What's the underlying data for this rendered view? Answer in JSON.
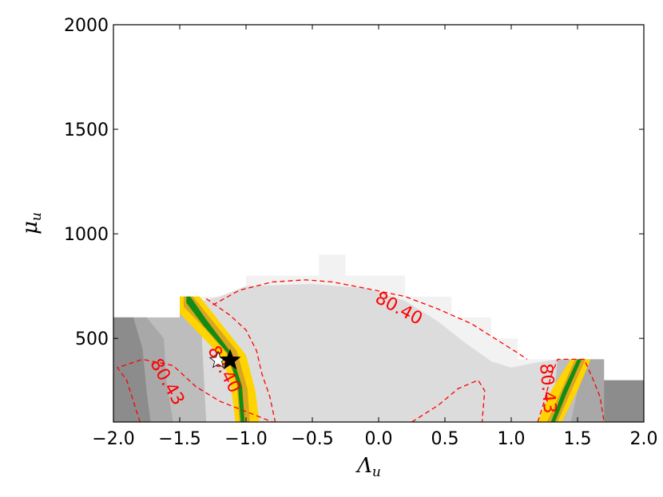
{
  "chart_data": {
    "type": "contour",
    "xlabel": {
      "main": "Λ",
      "sub": "u"
    },
    "ylabel": {
      "main": "μ",
      "sub": "u"
    },
    "xlim": [
      -2.0,
      2.0
    ],
    "ylim": [
      100,
      2000
    ],
    "xticks": [
      {
        "value": -2.0,
        "label": "−2.0"
      },
      {
        "value": -1.5,
        "label": "−1.5"
      },
      {
        "value": -1.0,
        "label": "−1.0"
      },
      {
        "value": -0.5,
        "label": "−0.5"
      },
      {
        "value": 0.0,
        "label": "0.0"
      },
      {
        "value": 0.5,
        "label": "0.5"
      },
      {
        "value": 1.0,
        "label": "1.0"
      },
      {
        "value": 1.5,
        "label": "1.5"
      },
      {
        "value": 2.0,
        "label": "2.0"
      }
    ],
    "yticks": [
      {
        "value": 500,
        "label": "500"
      },
      {
        "value": 1000,
        "label": "1000"
      },
      {
        "value": 1500,
        "label": "1500"
      },
      {
        "value": 2000,
        "label": "2000"
      }
    ],
    "colors": {
      "lightest": "#f2f2f2",
      "light": "#dcdcdc",
      "medium": "#bdbdbd",
      "dark": "#a8a8a8",
      "darkest": "#8c8c8c",
      "yellow": "#ffd400",
      "orange": "#daa520",
      "green": "#138c13",
      "contour": "#ff0000"
    },
    "regions": [
      {
        "name": "lightest",
        "color": "lightest",
        "points": [
          [
            -1.5,
            100
          ],
          [
            -1.5,
            700
          ],
          [
            -1.0,
            700
          ],
          [
            -1.0,
            800
          ],
          [
            -0.45,
            800
          ],
          [
            -0.45,
            900
          ],
          [
            -0.25,
            900
          ],
          [
            -0.25,
            800
          ],
          [
            0.2,
            800
          ],
          [
            0.2,
            700
          ],
          [
            0.55,
            700
          ],
          [
            0.55,
            600
          ],
          [
            0.85,
            600
          ],
          [
            0.85,
            500
          ],
          [
            1.05,
            500
          ],
          [
            1.05,
            400
          ],
          [
            1.3,
            400
          ],
          [
            1.3,
            100
          ]
        ]
      },
      {
        "name": "light",
        "color": "light",
        "points": [
          [
            -1.5,
            100
          ],
          [
            -1.5,
            650
          ],
          [
            -1.2,
            700
          ],
          [
            -1.0,
            750
          ],
          [
            -0.5,
            760
          ],
          [
            -0.1,
            740
          ],
          [
            0.2,
            680
          ],
          [
            0.45,
            580
          ],
          [
            0.65,
            480
          ],
          [
            0.85,
            390
          ],
          [
            1.0,
            360
          ],
          [
            1.15,
            380
          ],
          [
            1.35,
            400
          ],
          [
            1.35,
            100
          ]
        ]
      },
      {
        "name": "medium-left",
        "color": "medium",
        "points": [
          [
            -2.0,
            100
          ],
          [
            -2.0,
            600
          ],
          [
            -1.5,
            600
          ],
          [
            -1.5,
            700
          ],
          [
            -1.35,
            700
          ],
          [
            -1.3,
            100
          ]
        ]
      },
      {
        "name": "medium-right",
        "color": "medium",
        "points": [
          [
            1.3,
            100
          ],
          [
            1.35,
            400
          ],
          [
            1.7,
            400
          ],
          [
            1.7,
            300
          ],
          [
            2.0,
            300
          ],
          [
            2.0,
            100
          ]
        ]
      },
      {
        "name": "dark-left",
        "color": "dark",
        "points": [
          [
            -2.0,
            100
          ],
          [
            -2.0,
            600
          ],
          [
            -1.75,
            600
          ],
          [
            -1.62,
            500
          ],
          [
            -1.6,
            300
          ],
          [
            -1.55,
            100
          ]
        ]
      },
      {
        "name": "dark-right",
        "color": "dark",
        "points": [
          [
            1.45,
            100
          ],
          [
            1.5,
            250
          ],
          [
            1.55,
            400
          ],
          [
            1.7,
            400
          ],
          [
            1.7,
            100
          ]
        ]
      },
      {
        "name": "darkest-left",
        "color": "darkest",
        "points": [
          [
            -2.0,
            100
          ],
          [
            -2.0,
            600
          ],
          [
            -1.85,
            600
          ],
          [
            -1.78,
            450
          ],
          [
            -1.75,
            250
          ],
          [
            -1.72,
            100
          ]
        ]
      },
      {
        "name": "darkest-right",
        "color": "darkest",
        "points": [
          [
            1.7,
            100
          ],
          [
            1.7,
            300
          ],
          [
            2.0,
            300
          ],
          [
            2.0,
            100
          ]
        ]
      },
      {
        "name": "yellow-left",
        "color": "yellow",
        "points": [
          [
            -1.5,
            700
          ],
          [
            -1.35,
            700
          ],
          [
            -1.2,
            580
          ],
          [
            -1.0,
            420
          ],
          [
            -0.93,
            250
          ],
          [
            -0.9,
            100
          ],
          [
            -1.08,
            100
          ],
          [
            -1.12,
            300
          ],
          [
            -1.2,
            420
          ],
          [
            -1.35,
            520
          ],
          [
            -1.5,
            620
          ]
        ]
      },
      {
        "name": "yellow-right",
        "color": "yellow",
        "points": [
          [
            1.2,
            100
          ],
          [
            1.38,
            100
          ],
          [
            1.5,
            250
          ],
          [
            1.6,
            400
          ],
          [
            1.45,
            400
          ],
          [
            1.3,
            250
          ]
        ]
      },
      {
        "name": "orange-left",
        "color": "orange",
        "points": [
          [
            -1.47,
            700
          ],
          [
            -1.4,
            700
          ],
          [
            -1.26,
            590
          ],
          [
            -1.07,
            440
          ],
          [
            -0.99,
            260
          ],
          [
            -0.97,
            100
          ],
          [
            -1.05,
            100
          ],
          [
            -1.07,
            280
          ],
          [
            -1.15,
            430
          ],
          [
            -1.3,
            540
          ],
          [
            -1.47,
            650
          ]
        ]
      },
      {
        "name": "orange-right",
        "color": "orange",
        "points": [
          [
            1.27,
            100
          ],
          [
            1.35,
            100
          ],
          [
            1.44,
            230
          ],
          [
            1.56,
            400
          ],
          [
            1.48,
            400
          ],
          [
            1.37,
            240
          ]
        ]
      },
      {
        "name": "green-left",
        "color": "green",
        "points": [
          [
            -1.45,
            700
          ],
          [
            -1.42,
            700
          ],
          [
            -1.3,
            590
          ],
          [
            -1.11,
            430
          ],
          [
            -1.03,
            270
          ],
          [
            -1.01,
            100
          ],
          [
            -1.04,
            100
          ],
          [
            -1.06,
            270
          ],
          [
            -1.14,
            430
          ],
          [
            -1.32,
            560
          ],
          [
            -1.45,
            670
          ]
        ]
      },
      {
        "name": "green-right",
        "color": "green",
        "points": [
          [
            1.3,
            100
          ],
          [
            1.33,
            100
          ],
          [
            1.42,
            240
          ],
          [
            1.53,
            400
          ],
          [
            1.5,
            400
          ],
          [
            1.39,
            250
          ]
        ]
      }
    ],
    "contours": [
      {
        "name": "contour-upper-dashed",
        "points": [
          [
            -1.25,
            660
          ],
          [
            -1.05,
            730
          ],
          [
            -0.8,
            770
          ],
          [
            -0.55,
            780
          ],
          [
            -0.35,
            770
          ],
          [
            -0.1,
            740
          ],
          [
            0.2,
            700
          ],
          [
            0.45,
            640
          ],
          [
            0.7,
            570
          ],
          [
            0.9,
            490
          ],
          [
            1.05,
            430
          ],
          [
            1.12,
            400
          ]
        ]
      },
      {
        "name": "contour-inner-dashed",
        "points": [
          [
            -1.3,
            690
          ],
          [
            -1.12,
            610
          ],
          [
            -1.0,
            540
          ],
          [
            -0.92,
            440
          ],
          [
            -0.88,
            330
          ],
          [
            -0.82,
            220
          ],
          [
            -0.78,
            100
          ]
        ]
      },
      {
        "name": "contour-left-outer-dashed",
        "points": [
          [
            -1.8,
            100
          ],
          [
            -1.9,
            300
          ],
          [
            -1.97,
            360
          ],
          [
            -1.78,
            400
          ],
          [
            -1.55,
            370
          ],
          [
            -1.38,
            270
          ],
          [
            -1.2,
            200
          ],
          [
            -1.0,
            150
          ],
          [
            -0.8,
            100
          ]
        ]
      },
      {
        "name": "contour-bottom-dashed",
        "points": [
          [
            0.25,
            100
          ],
          [
            0.45,
            180
          ],
          [
            0.6,
            260
          ],
          [
            0.75,
            300
          ],
          [
            0.8,
            250
          ],
          [
            0.78,
            100
          ]
        ]
      },
      {
        "name": "contour-right-dashed",
        "points": [
          [
            1.2,
            100
          ],
          [
            1.25,
            200
          ],
          [
            1.3,
            320
          ],
          [
            1.35,
            400
          ],
          [
            1.55,
            400
          ],
          [
            1.62,
            300
          ],
          [
            1.67,
            220
          ],
          [
            1.7,
            100
          ]
        ]
      }
    ],
    "contour_labels": [
      {
        "text": "80.40",
        "x": 0.15,
        "y": 640,
        "rotation": 28
      },
      {
        "text": "80.40",
        "x": -1.17,
        "y": 350,
        "rotation": 62
      },
      {
        "text": "80.43",
        "x": -1.6,
        "y": 290,
        "rotation": 60
      },
      {
        "text": "80.43",
        "x": 1.27,
        "y": 260,
        "rotation": 85
      }
    ],
    "markers": [
      {
        "name": "best-fit-star",
        "symbol": "star",
        "x": -1.12,
        "y": 395,
        "color": "#000000"
      },
      {
        "name": "reference-star",
        "symbol": "star",
        "x": -1.21,
        "y": 395,
        "color": "#ffffff"
      }
    ]
  }
}
